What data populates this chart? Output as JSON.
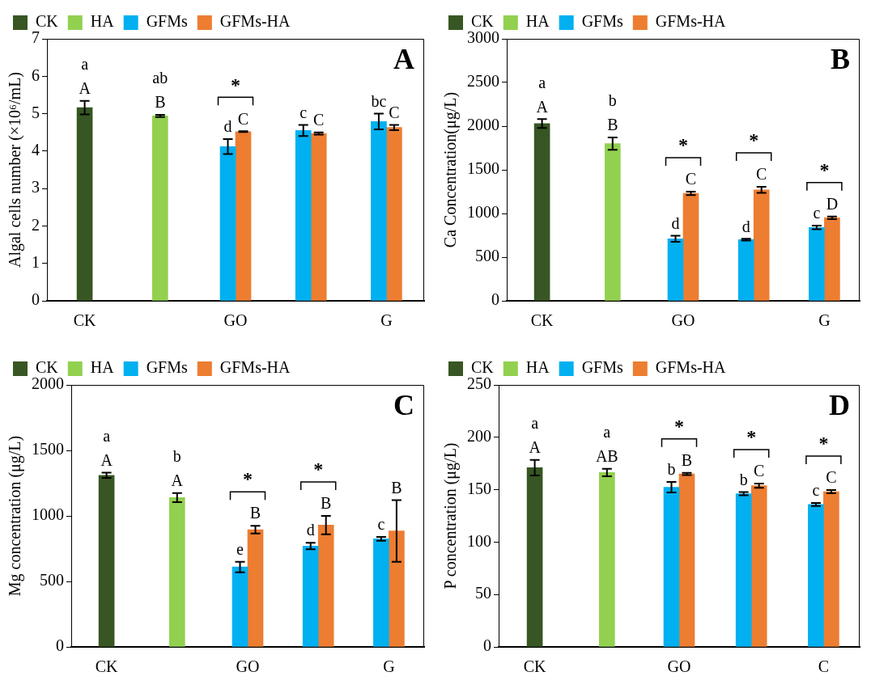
{
  "chart_data": [
    {
      "type": "bar",
      "title": "A",
      "ylabel": "Algal cells number (×10⁶/mL)",
      "categories": [
        "CK",
        null,
        "GO",
        null,
        "G"
      ],
      "ylim": [
        0,
        7
      ],
      "yticks": [
        0,
        1,
        2,
        3,
        4,
        5,
        6,
        7
      ],
      "grid": false,
      "legend": "top left",
      "series": [
        {
          "name": "CK",
          "color": "#375623",
          "values": [
            5.16,
            null,
            null,
            null,
            null
          ],
          "errors": [
            0.18,
            null,
            null,
            null,
            null
          ],
          "value_labels": [
            "a\nA",
            null,
            null,
            null,
            null
          ]
        },
        {
          "name": "HA",
          "color": "#92d050",
          "values": [
            null,
            4.94,
            null,
            null,
            null
          ],
          "errors": [
            null,
            0.03,
            null,
            null,
            null
          ],
          "value_labels": [
            null,
            "ab\nB",
            null,
            null,
            null
          ]
        },
        {
          "name": "GFMs",
          "color": "#00b0f0",
          "values": [
            null,
            null,
            4.12,
            4.55,
            4.79
          ],
          "errors": [
            null,
            null,
            0.2,
            0.15,
            0.21
          ],
          "value_labels": [
            null,
            null,
            "d",
            "c",
            "bc"
          ]
        },
        {
          "name": "GFMs-HA",
          "color": "#ed7d31",
          "values": [
            null,
            null,
            4.52,
            4.47,
            4.63
          ],
          "errors": [
            null,
            null,
            0.01,
            0.03,
            0.07
          ],
          "value_labels": [
            null,
            null,
            "C",
            "C",
            "C"
          ]
        }
      ],
      "annotations": [
        "*"
      ]
    },
    {
      "type": "bar",
      "title": "B",
      "ylabel": "Ca Concentration(μg/L)",
      "categories": [
        "CK",
        null,
        "GO",
        null,
        "G"
      ],
      "ylim": [
        0,
        3000
      ],
      "yticks": [
        0,
        500,
        1000,
        1500,
        2000,
        2500,
        3000
      ],
      "grid": false,
      "legend": "top left",
      "series": [
        {
          "name": "CK",
          "color": "#375623",
          "values": [
            2030,
            null,
            null,
            null,
            null
          ],
          "errors": [
            50,
            null,
            null,
            null,
            null
          ],
          "value_labels": [
            "a\nA",
            null,
            null,
            null,
            null
          ]
        },
        {
          "name": "HA",
          "color": "#92d050",
          "values": [
            null,
            1800,
            null,
            null,
            null
          ],
          "errors": [
            null,
            70,
            null,
            null,
            null
          ],
          "value_labels": [
            null,
            "b\nB",
            null,
            null,
            null
          ]
        },
        {
          "name": "GFMs",
          "color": "#00b0f0",
          "values": [
            null,
            null,
            710,
            700,
            840
          ],
          "errors": [
            null,
            null,
            35,
            10,
            20
          ],
          "value_labels": [
            null,
            null,
            "d",
            "d",
            "c"
          ]
        },
        {
          "name": "GFMs-HA",
          "color": "#ed7d31",
          "values": [
            null,
            null,
            1230,
            1270,
            950
          ],
          "errors": [
            null,
            null,
            20,
            35,
            15
          ],
          "value_labels": [
            null,
            null,
            "C",
            "C",
            "D"
          ]
        }
      ],
      "annotations": [
        "*",
        "*",
        "*"
      ]
    },
    {
      "type": "bar",
      "title": "C",
      "ylabel": "Mg concentration (μg/L)",
      "categories": [
        "CK",
        null,
        "GO",
        null,
        "G"
      ],
      "ylim": [
        0,
        2000
      ],
      "yticks": [
        0,
        500,
        1000,
        1500,
        2000
      ],
      "grid": false,
      "legend": "top left",
      "series": [
        {
          "name": "CK",
          "color": "#375623",
          "values": [
            1310,
            null,
            null,
            null,
            null
          ],
          "errors": [
            20,
            null,
            null,
            null,
            null
          ],
          "value_labels": [
            "a\nA",
            null,
            null,
            null,
            null
          ]
        },
        {
          "name": "HA",
          "color": "#92d050",
          "values": [
            null,
            1140,
            null,
            null,
            null
          ],
          "errors": [
            null,
            35,
            null,
            null,
            null
          ],
          "value_labels": [
            null,
            "b\nA",
            null,
            null,
            null
          ]
        },
        {
          "name": "GFMs",
          "color": "#00b0f0",
          "values": [
            null,
            null,
            610,
            770,
            825
          ],
          "errors": [
            null,
            null,
            40,
            25,
            15
          ],
          "value_labels": [
            null,
            null,
            "e",
            "d",
            "c"
          ]
        },
        {
          "name": "GFMs-HA",
          "color": "#ed7d31",
          "values": [
            null,
            null,
            895,
            930,
            885
          ],
          "errors": [
            null,
            null,
            30,
            70,
            235
          ],
          "value_labels": [
            null,
            null,
            "B",
            "B",
            "B"
          ]
        }
      ],
      "annotations": [
        "*",
        "*"
      ]
    },
    {
      "type": "bar",
      "title": "D",
      "ylabel": "P concentration (μg/L)",
      "categories": [
        "CK",
        null,
        "GO",
        null,
        "C"
      ],
      "ylim": [
        0,
        250
      ],
      "yticks": [
        0,
        50,
        100,
        150,
        200,
        250
      ],
      "grid": false,
      "legend": "top left",
      "series": [
        {
          "name": "CK",
          "color": "#375623",
          "values": [
            171,
            null,
            null,
            null,
            null
          ],
          "errors": [
            7.5,
            null,
            null,
            null,
            null
          ],
          "value_labels": [
            "a\nA",
            null,
            null,
            null,
            null
          ]
        },
        {
          "name": "HA",
          "color": "#92d050",
          "values": [
            null,
            166.4,
            null,
            null,
            null
          ],
          "errors": [
            null,
            3.5,
            null,
            null,
            null
          ],
          "value_labels": [
            null,
            "a\nAB",
            null,
            null,
            null
          ]
        },
        {
          "name": "GFMs",
          "color": "#00b0f0",
          "values": [
            null,
            null,
            152.4,
            146.2,
            135.9
          ],
          "errors": [
            null,
            null,
            5,
            1.5,
            1.5
          ],
          "value_labels": [
            null,
            null,
            "b",
            "b",
            "c"
          ]
        },
        {
          "name": "GFMs-HA",
          "color": "#ed7d31",
          "values": [
            null,
            null,
            165,
            153.9,
            148.1
          ],
          "errors": [
            null,
            null,
            1,
            2,
            1.5
          ],
          "value_labels": [
            null,
            null,
            "B",
            "C",
            "C"
          ]
        }
      ],
      "annotations": [
        "*",
        "*",
        "*"
      ]
    }
  ]
}
